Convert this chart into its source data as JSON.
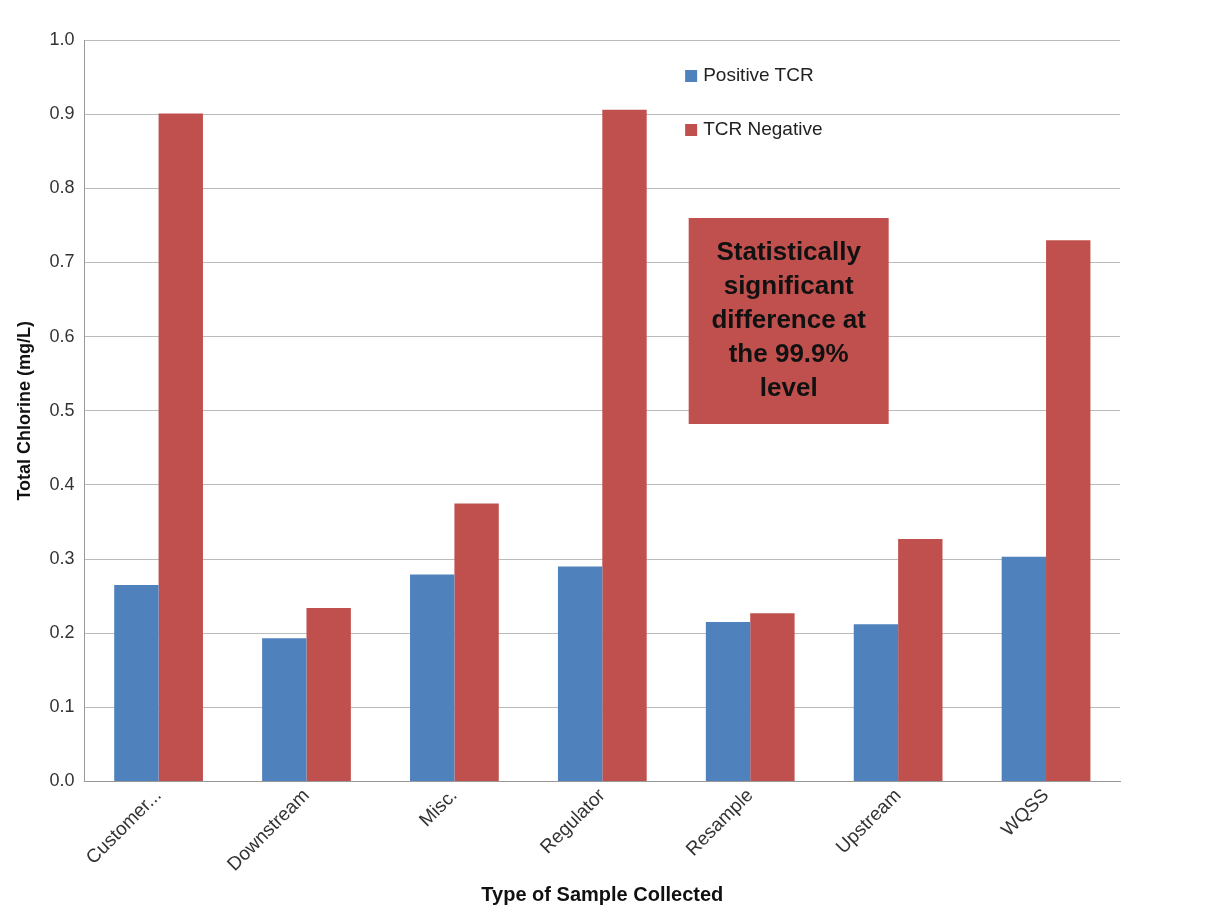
{
  "chart_data": {
    "type": "bar",
    "xlabel": "Type of Sample Collected",
    "ylabel": "Total Chlorine (mg/L)",
    "categories": [
      "Customer...",
      "Downstream",
      "Misc.",
      "Regulator",
      "Resample",
      "Upstream",
      "WQSS"
    ],
    "series": [
      {
        "name": "Positive TCR",
        "color": "#4f81bd",
        "values": [
          0.265,
          0.193,
          0.279,
          0.29,
          0.215,
          0.212,
          0.303
        ]
      },
      {
        "name": "TCR Negative",
        "color": "#c0504d",
        "values": [
          0.901,
          0.234,
          0.375,
          0.906,
          0.227,
          0.327,
          0.73
        ]
      }
    ],
    "ylim": [
      0,
      1
    ],
    "yticks": [
      {
        "value": 0,
        "label": "0.0"
      },
      {
        "value": 0.1,
        "label": "0.1"
      },
      {
        "value": 0.2,
        "label": "0.2"
      },
      {
        "value": 0.3,
        "label": "0.3"
      },
      {
        "value": 0.4,
        "label": "0.4"
      },
      {
        "value": 0.5,
        "label": "0.5"
      },
      {
        "value": 0.6,
        "label": "0.6"
      },
      {
        "value": 0.7,
        "label": "0.7"
      },
      {
        "value": 0.8,
        "label": "0.8"
      },
      {
        "value": 0.9,
        "label": "0.9"
      },
      {
        "value": 1,
        "label": "1.0"
      }
    ],
    "grid": "y",
    "legend": "top right",
    "annotations": [
      "Statistically significant difference at the 99.9% level"
    ]
  }
}
